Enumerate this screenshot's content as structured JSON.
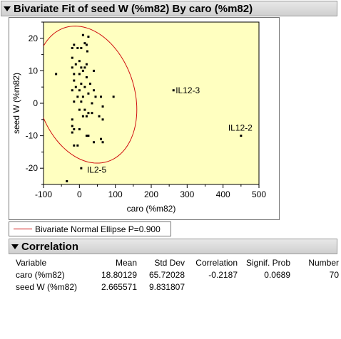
{
  "report": {
    "title": "Bivariate Fit of seed W  (%m82) By caro (%m82)"
  },
  "legend": {
    "ellipse_label": "Bivariate Normal Ellipse P=0.900",
    "ellipse_color": "#d01010"
  },
  "colors": {
    "plot_background": "#ffffc0",
    "header_background": "#d8d8d8",
    "points": "#000000"
  },
  "chart_data": {
    "type": "scatter",
    "xlabel": "caro (%m82)",
    "ylabel": "seed W  (%m82)",
    "xlim": [
      -100,
      500
    ],
    "ylim": [
      -25,
      25
    ],
    "xticks": [
      -100,
      0,
      100,
      200,
      300,
      400,
      500
    ],
    "yticks": [
      -20,
      -10,
      0,
      10,
      20
    ],
    "grid": false,
    "legend_position": "below",
    "ellipse": {
      "probability": 0.9,
      "mean_x": 18.80129,
      "mean_y": 2.665571,
      "sd_x": 65.72028,
      "sd_y": 9.831807,
      "correlation": -0.2187
    },
    "points": [
      {
        "x": 10,
        "y": 21
      },
      {
        "x": 25,
        "y": 20.5
      },
      {
        "x": 15,
        "y": 18.5
      },
      {
        "x": -15,
        "y": 18
      },
      {
        "x": 20,
        "y": 18
      },
      {
        "x": -20,
        "y": 17
      },
      {
        "x": -5,
        "y": 17
      },
      {
        "x": 5,
        "y": 17
      },
      {
        "x": 22,
        "y": 16
      },
      {
        "x": -20,
        "y": 14
      },
      {
        "x": 0,
        "y": 13
      },
      {
        "x": -10,
        "y": 12
      },
      {
        "x": -65,
        "y": 9
      },
      {
        "x": -20,
        "y": 11
      },
      {
        "x": 5,
        "y": 11
      },
      {
        "x": 15,
        "y": 11
      },
      {
        "x": 20,
        "y": 12
      },
      {
        "x": 40,
        "y": 10
      },
      {
        "x": 10,
        "y": 10
      },
      {
        "x": -15,
        "y": 9
      },
      {
        "x": 0,
        "y": 9
      },
      {
        "x": 20,
        "y": 8
      },
      {
        "x": -15,
        "y": 7
      },
      {
        "x": 30,
        "y": 6
      },
      {
        "x": 5,
        "y": 6
      },
      {
        "x": 15,
        "y": 5
      },
      {
        "x": 40,
        "y": 4
      },
      {
        "x": -10,
        "y": 5
      },
      {
        "x": -20,
        "y": 4
      },
      {
        "x": 0,
        "y": 4
      },
      {
        "x": 25,
        "y": 3
      },
      {
        "x": 10,
        "y": 2
      },
      {
        "x": -5,
        "y": 2
      },
      {
        "x": 45,
        "y": 2
      },
      {
        "x": 60,
        "y": 2
      },
      {
        "x": 95,
        "y": 2
      },
      {
        "x": -15,
        "y": 0.5
      },
      {
        "x": 5,
        "y": 0.5
      },
      {
        "x": 35,
        "y": 0
      },
      {
        "x": 65,
        "y": -1
      },
      {
        "x": 0,
        "y": -2
      },
      {
        "x": 15,
        "y": -2
      },
      {
        "x": 25,
        "y": -3
      },
      {
        "x": 35,
        "y": -3
      },
      {
        "x": 10,
        "y": -4
      },
      {
        "x": 20,
        "y": -4
      },
      {
        "x": 55,
        "y": -4
      },
      {
        "x": 65,
        "y": -5
      },
      {
        "x": -20,
        "y": -5
      },
      {
        "x": -20,
        "y": -7
      },
      {
        "x": -15,
        "y": -8
      },
      {
        "x": 0,
        "y": -8
      },
      {
        "x": -20,
        "y": -9
      },
      {
        "x": 20,
        "y": -10
      },
      {
        "x": 25,
        "y": -10
      },
      {
        "x": 60,
        "y": -11
      },
      {
        "x": 40,
        "y": -12
      },
      {
        "x": 65,
        "y": -12
      },
      {
        "x": -15,
        "y": -13
      },
      {
        "x": -5,
        "y": -13
      },
      {
        "x": 5,
        "y": -20
      },
      {
        "x": -35,
        "y": -24
      },
      {
        "x": 262,
        "y": 4
      },
      {
        "x": 450,
        "y": -10
      }
    ],
    "annotations": [
      {
        "text": "IL12-3",
        "x": 262,
        "y": 4
      },
      {
        "text": "IL12-2",
        "x": 450,
        "y": -10
      },
      {
        "text": "IL2-5",
        "x": 15,
        "y": -20.5
      }
    ]
  },
  "correlation": {
    "title": "Correlation",
    "columns": [
      "Variable",
      "Mean",
      "Std Dev",
      "Correlation",
      "Signif. Prob",
      "Number"
    ],
    "rows": [
      {
        "variable": "caro (%m82)",
        "mean": "18.80129",
        "std_dev": "65.72028",
        "correlation": "-0.2187",
        "signif_prob": "0.0689",
        "number": "70"
      },
      {
        "variable": "seed W  (%m82)",
        "mean": "2.665571",
        "std_dev": "9.831807",
        "correlation": "",
        "signif_prob": "",
        "number": ""
      }
    ]
  }
}
